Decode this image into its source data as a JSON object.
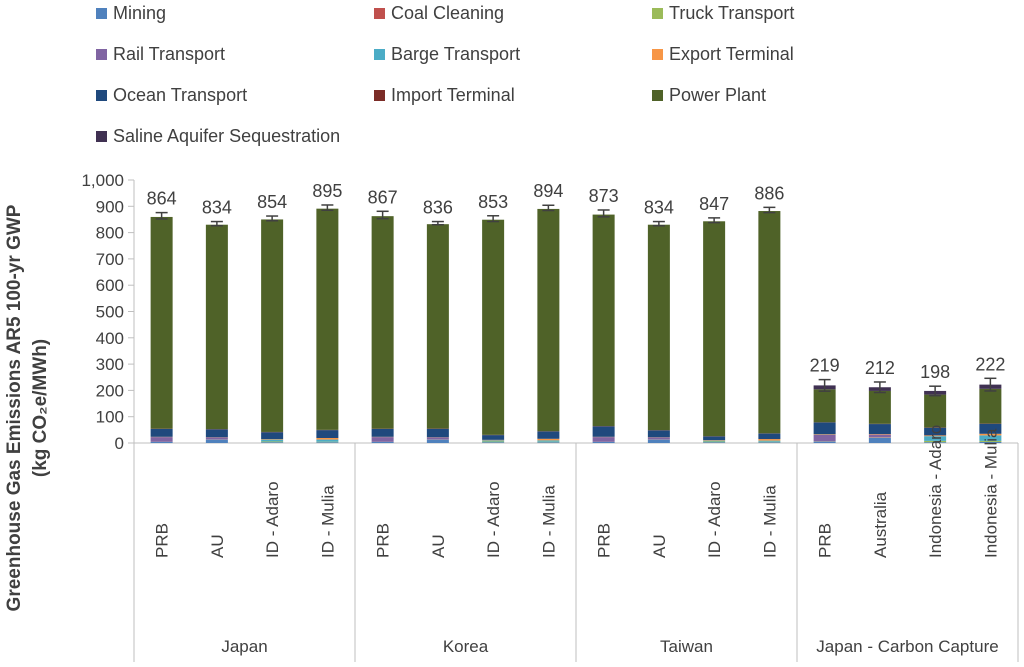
{
  "chart_data": {
    "type": "bar",
    "stacked": true,
    "ylabel_line1": "Greenhouse Gas Emissions AR5 100-yr GWP",
    "ylabel_line2": "(kg CO₂e/MWh)",
    "ylim": [
      0,
      1000
    ],
    "yticks": [
      0,
      100,
      200,
      300,
      400,
      500,
      600,
      700,
      800,
      900,
      1000
    ],
    "ytick_labels": [
      "0",
      "100",
      "200",
      "300",
      "400",
      "500",
      "600",
      "700",
      "800",
      "900",
      "1,000"
    ],
    "grid": false,
    "legend_position": "top",
    "groups": [
      {
        "label": "Japan",
        "categories": [
          "PRB",
          "AU",
          "ID - Adaro",
          "ID - Mulia"
        ]
      },
      {
        "label": "Korea",
        "categories": [
          "PRB",
          "AU",
          "ID - Adaro",
          "ID - Mulia"
        ]
      },
      {
        "label": "Taiwan",
        "categories": [
          "PRB",
          "AU",
          "ID - Adaro",
          "ID - Mulia"
        ]
      },
      {
        "label": "Japan - Carbon Capture",
        "categories": [
          "PRB",
          "Australia",
          "Indonesia - Adaro",
          "Indonesia - Mulia"
        ]
      }
    ],
    "totals": [
      864,
      834,
      854,
      895,
      867,
      836,
      853,
      894,
      873,
      834,
      847,
      886,
      219,
      212,
      198,
      222
    ],
    "error_bars": [
      12,
      8,
      9,
      10,
      14,
      6,
      11,
      10,
      13,
      8,
      9,
      10,
      22,
      20,
      18,
      24
    ],
    "series": [
      {
        "name": "Mining",
        "color": "#4f81bd",
        "values": [
          4,
          13,
          3,
          3,
          4,
          13,
          3,
          3,
          4,
          13,
          3,
          3,
          5,
          20,
          3,
          4
        ]
      },
      {
        "name": "Coal Cleaning",
        "color": "#c0504d",
        "values": [
          0,
          0.5,
          0,
          0,
          0,
          0.5,
          0,
          0,
          0,
          0.5,
          0,
          0,
          0,
          1,
          0,
          0
        ]
      },
      {
        "name": "Truck Transport",
        "color": "#9bbb59",
        "values": [
          0.5,
          0.5,
          3,
          2,
          0.5,
          0.5,
          3,
          2,
          0.5,
          0.5,
          3,
          2,
          1,
          1,
          5,
          4
        ]
      },
      {
        "name": "Rail Transport",
        "color": "#8064a2",
        "values": [
          18,
          7,
          0,
          0,
          18,
          7,
          0,
          0,
          18,
          7,
          0,
          0,
          25,
          10,
          0,
          0
        ]
      },
      {
        "name": "Barge Transport",
        "color": "#4bacc6",
        "values": [
          0,
          0,
          7,
          8,
          0,
          0,
          4,
          5,
          0,
          0,
          3,
          4,
          0,
          0,
          18,
          21
        ]
      },
      {
        "name": "Export Terminal",
        "color": "#f79646",
        "values": [
          1,
          1,
          2,
          6,
          1,
          1,
          2,
          6,
          1,
          1,
          2,
          6,
          2,
          2,
          3,
          6
        ]
      },
      {
        "name": "Ocean Transport",
        "color": "#1f497d",
        "values": [
          30,
          30,
          26,
          30,
          30,
          32,
          18,
          28,
          40,
          26,
          14,
          21,
          45,
          38,
          29,
          38
        ]
      },
      {
        "name": "Import Terminal",
        "color": "#7b2c27",
        "values": [
          1,
          1,
          1,
          1,
          1,
          1,
          1,
          1,
          1,
          1,
          1,
          1,
          1,
          1,
          1,
          1
        ]
      },
      {
        "name": "Power Plant",
        "color": "#4f6228",
        "values": [
          805,
          777,
          808,
          841,
          808,
          777,
          818,
          845,
          804,
          781,
          817,
          845,
          125,
          125,
          125,
          132
        ]
      },
      {
        "name": "Saline Aquifer Sequestration",
        "color": "#403152",
        "values": [
          0,
          0,
          0,
          0,
          0,
          0,
          0,
          0,
          0,
          0,
          0,
          0,
          15,
          14,
          14,
          16
        ]
      }
    ]
  }
}
